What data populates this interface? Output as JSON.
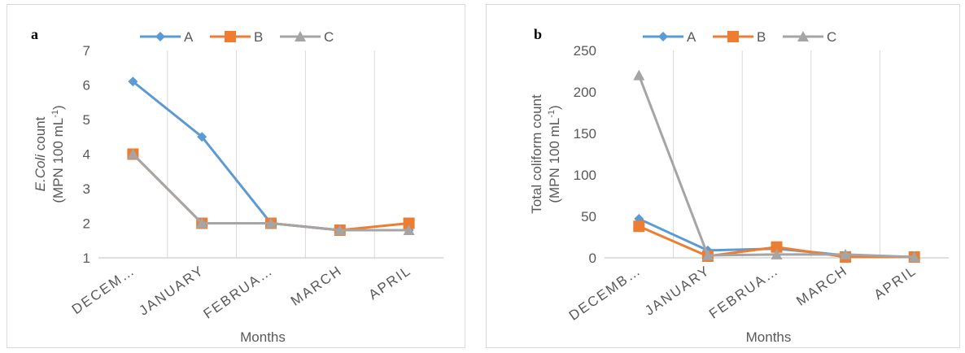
{
  "chart_data": [
    {
      "type": "line",
      "panel": "a",
      "ylabel": [
        [
          {
            "text": "E.Coli",
            "style": "italic"
          },
          {
            "text": " count"
          }
        ],
        [
          {
            "text": "(MPN 100 mL"
          },
          {
            "text": "-1",
            "style": "sup"
          },
          {
            "text": ")"
          }
        ]
      ],
      "xlabel": "Months",
      "categories": [
        "DECEM…",
        "JANUARY",
        "FEBRUA…",
        "MARCH",
        "APRIL"
      ],
      "series": [
        {
          "name": "A",
          "color": "#5b9bd5",
          "marker": "diamond",
          "values": [
            6.1,
            4.5,
            2,
            1.8,
            1.8
          ]
        },
        {
          "name": "B",
          "color": "#ed7d31",
          "marker": "square",
          "values": [
            4,
            2,
            2,
            1.8,
            2
          ]
        },
        {
          "name": "C",
          "color": "#a5a5a5",
          "marker": "triangle",
          "values": [
            4,
            2,
            2,
            1.8,
            1.8
          ]
        }
      ],
      "ylim": [
        1,
        7
      ],
      "yticks": [
        1,
        2,
        3,
        4,
        5,
        6,
        7
      ],
      "grid": true,
      "legend": "top"
    },
    {
      "type": "line",
      "panel": "b",
      "ylabel": [
        [
          {
            "text": "Total coliform count"
          }
        ],
        [
          {
            "text": "(MPN 100 mL"
          },
          {
            "text": "-1",
            "style": "sup"
          },
          {
            "text": ")"
          }
        ]
      ],
      "xlabel": "Months",
      "categories": [
        "DECEMB…",
        "JANUARY",
        "FEBRUA…",
        "MARCH",
        "APRIL"
      ],
      "series": [
        {
          "name": "A",
          "color": "#5b9bd5",
          "marker": "diamond",
          "values": [
            47,
            9,
            11,
            3,
            1
          ]
        },
        {
          "name": "B",
          "color": "#ed7d31",
          "marker": "square",
          "values": [
            38,
            2,
            13,
            1,
            1
          ]
        },
        {
          "name": "C",
          "color": "#a5a5a5",
          "marker": "triangle",
          "values": [
            220,
            3,
            4,
            4,
            1
          ]
        }
      ],
      "ylim": [
        0,
        250
      ],
      "yticks": [
        0,
        50,
        100,
        150,
        200,
        250
      ],
      "grid": true,
      "legend": "top"
    }
  ]
}
